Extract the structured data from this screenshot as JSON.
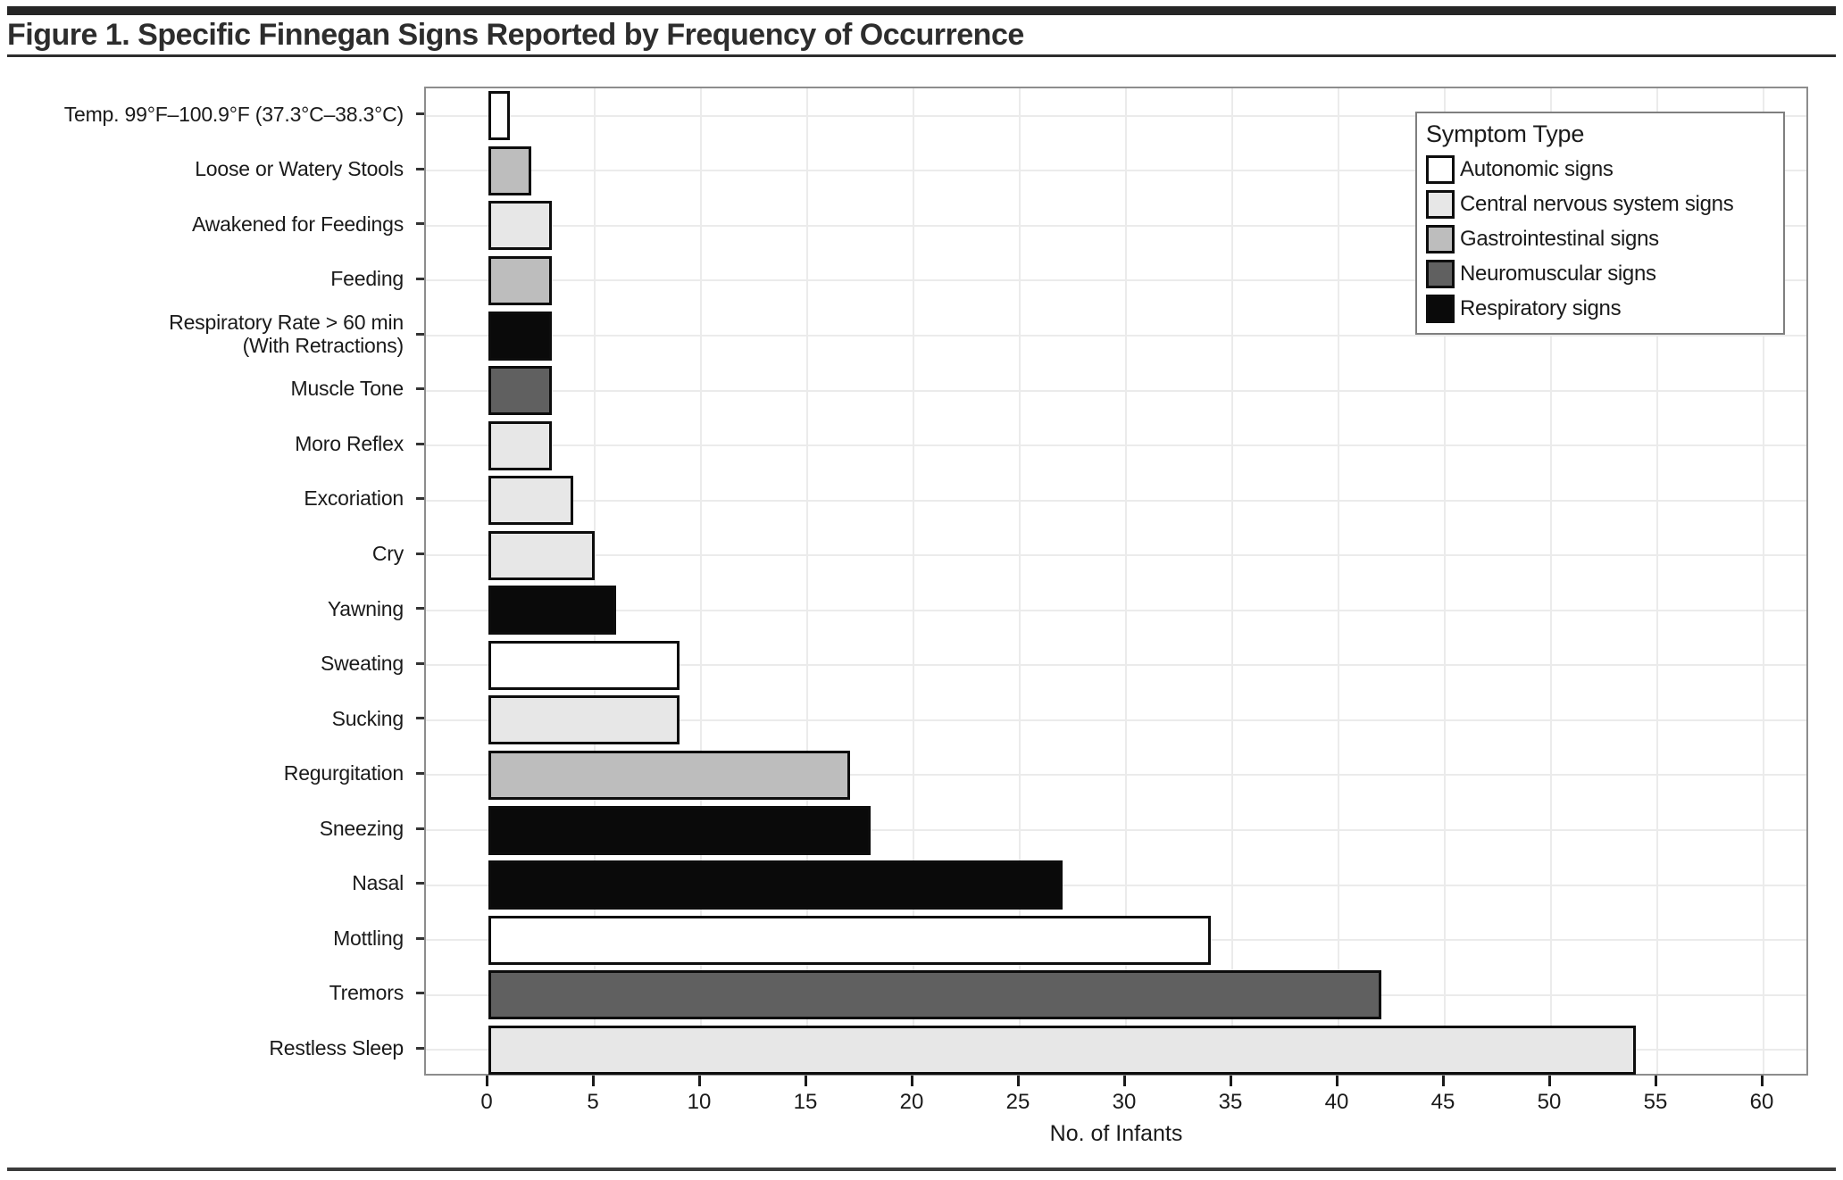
{
  "figure": {
    "title": "Figure 1. Specific Finnegan Signs Reported by Frequency of Occurrence"
  },
  "chart_data": {
    "type": "bar",
    "orientation": "horizontal",
    "title": "Figure 1. Specific Finnegan Signs Reported by Frequency of Occurrence",
    "xlabel": "No. of Infants",
    "ylabel": "",
    "xlim": [
      0,
      63
    ],
    "xticks": [
      0,
      5,
      10,
      15,
      20,
      25,
      30,
      35,
      40,
      45,
      50,
      55,
      60
    ],
    "grid": true,
    "legend_position": "top-right",
    "legend_title": "Symptom Type",
    "symptom_types": [
      {
        "name": "Autonomic signs",
        "color": "#ffffff"
      },
      {
        "name": "Central nervous system signs",
        "color": "#e7e7e7"
      },
      {
        "name": "Gastrointestinal signs",
        "color": "#bdbdbd"
      },
      {
        "name": "Neuromuscular signs",
        "color": "#606060"
      },
      {
        "name": "Respiratory signs",
        "color": "#0a0a0a"
      }
    ],
    "bars": [
      {
        "label": "Temp. 99°F–100.9°F (37.3°C–38.3°C)",
        "value": 1,
        "type": "Autonomic signs"
      },
      {
        "label": "Loose or Watery Stools",
        "value": 2,
        "type": "Gastrointestinal signs"
      },
      {
        "label": "Awakened for Feedings",
        "value": 3,
        "type": "Central nervous system signs"
      },
      {
        "label": "Feeding",
        "value": 3,
        "type": "Gastrointestinal signs"
      },
      {
        "label": "Respiratory Rate > 60 min\n(With Retractions)",
        "value": 3,
        "type": "Respiratory signs"
      },
      {
        "label": "Muscle Tone",
        "value": 3,
        "type": "Neuromuscular signs"
      },
      {
        "label": "Moro Reflex",
        "value": 3,
        "type": "Central nervous system signs"
      },
      {
        "label": "Excoriation",
        "value": 4,
        "type": "Central nervous system signs"
      },
      {
        "label": "Cry",
        "value": 5,
        "type": "Central nervous system signs"
      },
      {
        "label": "Yawning",
        "value": 6,
        "type": "Respiratory signs"
      },
      {
        "label": "Sweating",
        "value": 9,
        "type": "Autonomic signs"
      },
      {
        "label": "Sucking",
        "value": 9,
        "type": "Central nervous system signs"
      },
      {
        "label": "Regurgitation",
        "value": 17,
        "type": "Gastrointestinal signs"
      },
      {
        "label": "Sneezing",
        "value": 18,
        "type": "Respiratory signs"
      },
      {
        "label": "Nasal",
        "value": 27,
        "type": "Respiratory signs"
      },
      {
        "label": "Mottling",
        "value": 34,
        "type": "Autonomic signs"
      },
      {
        "label": "Tremors",
        "value": 42,
        "type": "Neuromuscular signs"
      },
      {
        "label": "Restless Sleep",
        "value": 54,
        "type": "Central nervous system signs"
      }
    ]
  }
}
